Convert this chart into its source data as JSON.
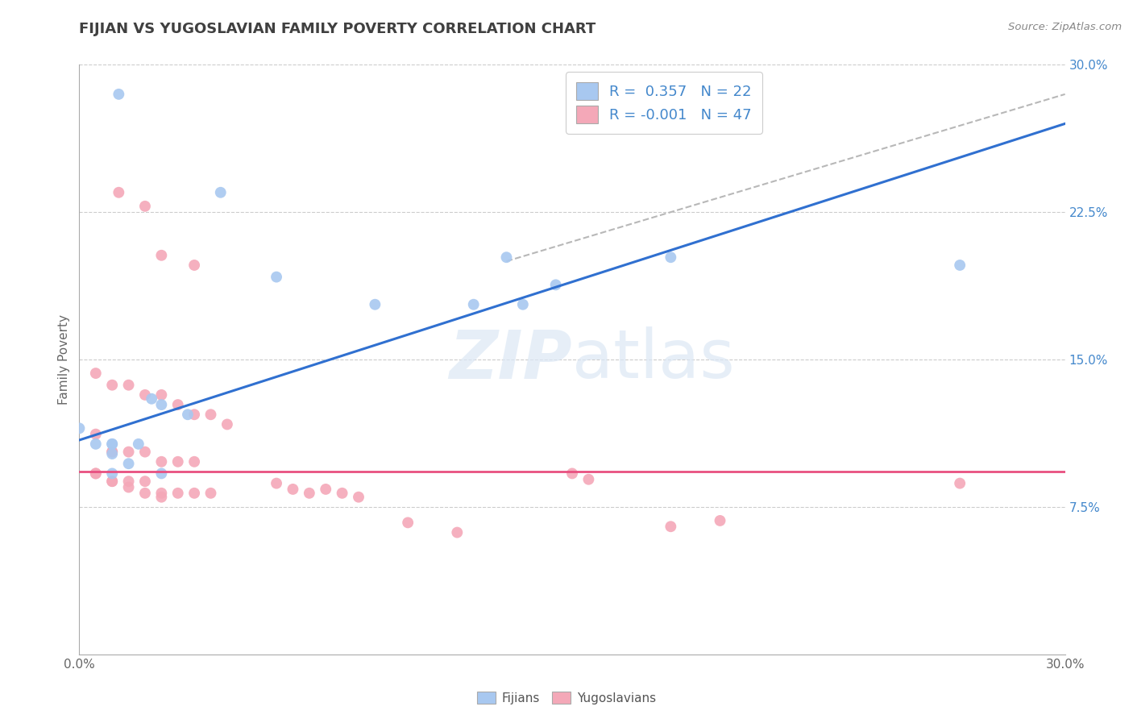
{
  "title": "FIJIAN VS YUGOSLAVIAN FAMILY POVERTY CORRELATION CHART",
  "source": "Source: ZipAtlas.com",
  "ylabel": "Family Poverty",
  "xlim": [
    0.0,
    0.3
  ],
  "ylim": [
    0.0,
    0.3
  ],
  "fijian_R": 0.357,
  "fijian_N": 22,
  "yugoslav_R": -0.001,
  "yugoslav_N": 47,
  "fijian_color": "#a8c8f0",
  "yugoslav_color": "#f4a8b8",
  "fijian_line_color": "#3070d0",
  "yugoslav_line_color": "#e85080",
  "fijian_line": [
    0.0,
    0.109,
    0.3,
    0.27
  ],
  "yugoslav_line": [
    0.0,
    0.093,
    0.3,
    0.093
  ],
  "dash_line": [
    0.13,
    0.2,
    0.3,
    0.285
  ],
  "background_color": "#ffffff",
  "fijian_points": [
    [
      0.012,
      0.285
    ],
    [
      0.043,
      0.235
    ],
    [
      0.0,
      0.115
    ],
    [
      0.022,
      0.13
    ],
    [
      0.01,
      0.107
    ],
    [
      0.018,
      0.107
    ],
    [
      0.025,
      0.127
    ],
    [
      0.033,
      0.122
    ],
    [
      0.01,
      0.107
    ],
    [
      0.005,
      0.107
    ],
    [
      0.01,
      0.102
    ],
    [
      0.015,
      0.097
    ],
    [
      0.025,
      0.092
    ],
    [
      0.01,
      0.092
    ],
    [
      0.06,
      0.192
    ],
    [
      0.09,
      0.178
    ],
    [
      0.12,
      0.178
    ],
    [
      0.13,
      0.202
    ],
    [
      0.135,
      0.178
    ],
    [
      0.145,
      0.188
    ],
    [
      0.18,
      0.202
    ],
    [
      0.268,
      0.198
    ]
  ],
  "yugoslav_points": [
    [
      0.012,
      0.235
    ],
    [
      0.02,
      0.228
    ],
    [
      0.025,
      0.203
    ],
    [
      0.035,
      0.198
    ],
    [
      0.005,
      0.143
    ],
    [
      0.01,
      0.137
    ],
    [
      0.015,
      0.137
    ],
    [
      0.02,
      0.132
    ],
    [
      0.025,
      0.132
    ],
    [
      0.03,
      0.127
    ],
    [
      0.035,
      0.122
    ],
    [
      0.04,
      0.122
    ],
    [
      0.045,
      0.117
    ],
    [
      0.005,
      0.112
    ],
    [
      0.01,
      0.103
    ],
    [
      0.01,
      0.103
    ],
    [
      0.015,
      0.103
    ],
    [
      0.02,
      0.103
    ],
    [
      0.025,
      0.098
    ],
    [
      0.03,
      0.098
    ],
    [
      0.035,
      0.098
    ],
    [
      0.005,
      0.092
    ],
    [
      0.01,
      0.088
    ],
    [
      0.015,
      0.088
    ],
    [
      0.02,
      0.088
    ],
    [
      0.025,
      0.082
    ],
    [
      0.03,
      0.082
    ],
    [
      0.035,
      0.082
    ],
    [
      0.04,
      0.082
    ],
    [
      0.005,
      0.092
    ],
    [
      0.01,
      0.088
    ],
    [
      0.015,
      0.085
    ],
    [
      0.02,
      0.082
    ],
    [
      0.025,
      0.08
    ],
    [
      0.06,
      0.087
    ],
    [
      0.065,
      0.084
    ],
    [
      0.07,
      0.082
    ],
    [
      0.075,
      0.084
    ],
    [
      0.08,
      0.082
    ],
    [
      0.085,
      0.08
    ],
    [
      0.1,
      0.067
    ],
    [
      0.115,
      0.062
    ],
    [
      0.15,
      0.092
    ],
    [
      0.155,
      0.089
    ],
    [
      0.18,
      0.065
    ],
    [
      0.195,
      0.068
    ],
    [
      0.268,
      0.087
    ]
  ]
}
